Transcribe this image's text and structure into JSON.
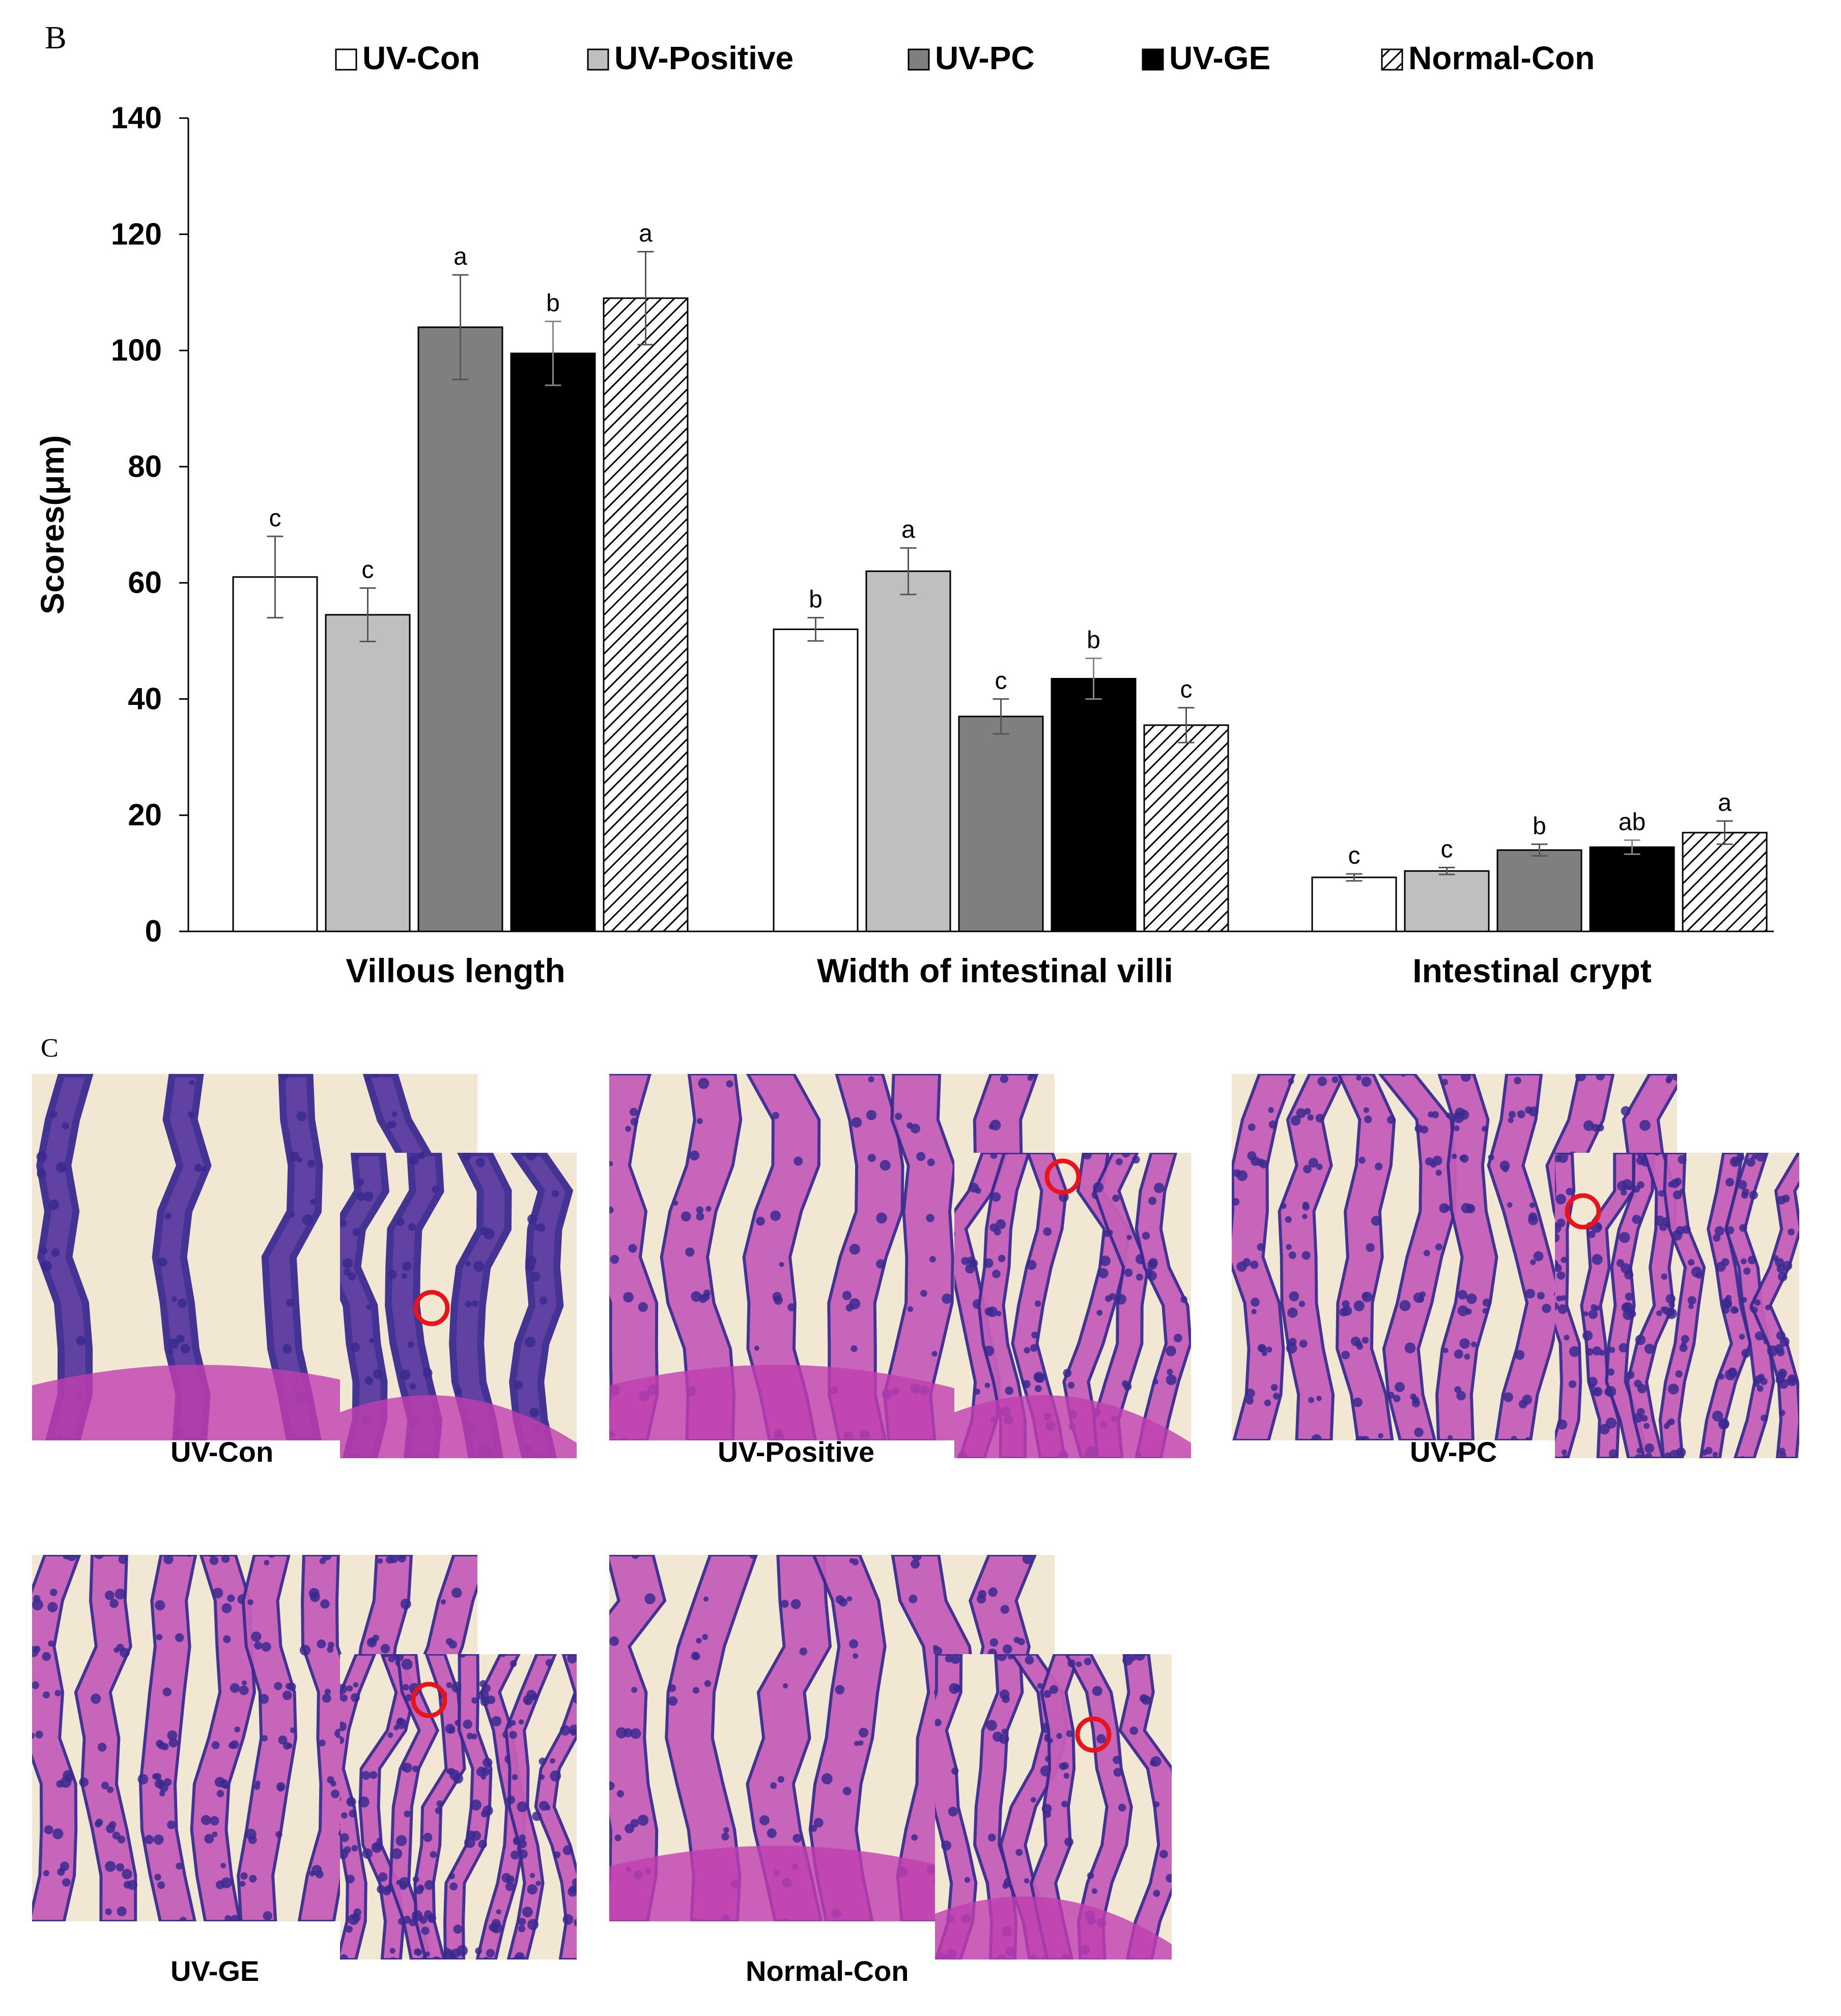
{
  "panel_b_label": "B",
  "panel_c_label": "C",
  "colors": {
    "uv_con": "#ffffff",
    "uv_positive": "#bfbfbf",
    "uv_pc": "#7f7f7f",
    "uv_ge": "#000000",
    "normal_con": "hatched",
    "marker_circle": "#e8141b",
    "tissue_pink": "#c45fb8",
    "tissue_purple": "#3a2a8f",
    "background_cream": "#f1e7d2"
  },
  "chart_data": {
    "type": "bar",
    "title": "",
    "xlabel": "",
    "ylabel": "Scores(μm)",
    "ylim": [
      0,
      140
    ],
    "yticks": [
      0,
      20,
      40,
      60,
      80,
      100,
      120,
      140
    ],
    "legend_position": "top",
    "grid": false,
    "categories": [
      "Villous length",
      "Width of intestinal villi",
      "Intestinal crypt"
    ],
    "series": [
      {
        "name": "UV-Con",
        "color": "#ffffff",
        "values": [
          61.0,
          52.0,
          9.3
        ],
        "errors": [
          7.0,
          2.0,
          0.6
        ],
        "letters": [
          "c",
          "b",
          "c"
        ]
      },
      {
        "name": "UV-Positive",
        "color": "#bfbfbf",
        "values": [
          54.5,
          62.0,
          10.4
        ],
        "errors": [
          4.6,
          4.0,
          0.6
        ],
        "letters": [
          "c",
          "a",
          "c"
        ]
      },
      {
        "name": "UV-PC",
        "color": "#7f7f7f",
        "values": [
          104.0,
          37.0,
          14.0
        ],
        "errors": [
          9.0,
          3.0,
          1.0
        ],
        "letters": [
          "a",
          "c",
          "b"
        ]
      },
      {
        "name": "UV-GE",
        "color": "#000000",
        "values": [
          99.5,
          43.5,
          14.5
        ],
        "errors": [
          5.5,
          3.5,
          1.2
        ],
        "letters": [
          "b",
          "b",
          "ab"
        ]
      },
      {
        "name": "Normal-Con",
        "color": "hatched",
        "values": [
          109.0,
          35.5,
          17.0
        ],
        "errors": [
          8.0,
          3.0,
          2.0
        ],
        "letters": [
          "a",
          "c",
          "a"
        ]
      }
    ]
  },
  "micrographs": [
    {
      "caption": "UV-Con",
      "variant": "sparse"
    },
    {
      "caption": "UV-Positive",
      "variant": "pink"
    },
    {
      "caption": "UV-PC",
      "variant": "dense"
    },
    {
      "caption": "UV-GE",
      "variant": "dense"
    },
    {
      "caption": "Normal-Con",
      "variant": "pink"
    }
  ]
}
